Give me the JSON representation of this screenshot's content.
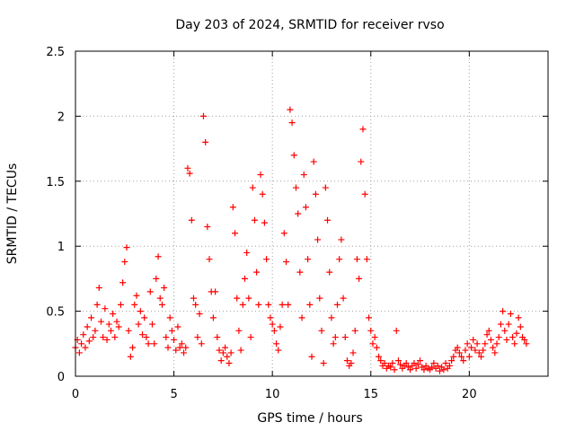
{
  "chart_data": {
    "type": "scatter",
    "title": "Day 203 of 2024, SRMTID for receiver rvso",
    "xlabel": "GPS time / hours",
    "ylabel": "SRMTID / TECUs",
    "xlim": [
      0,
      24
    ],
    "ylim": [
      0,
      2.5
    ],
    "grid": true,
    "marker": "+",
    "color": "#ff0000",
    "xticks": [
      {
        "value": 0,
        "label": "0"
      },
      {
        "value": 5,
        "label": "5"
      },
      {
        "value": 10,
        "label": "10"
      },
      {
        "value": 15,
        "label": "15"
      },
      {
        "value": 20,
        "label": "20"
      }
    ],
    "yticks": [
      {
        "value": 0,
        "label": "0"
      },
      {
        "value": 0.5,
        "label": "0.5"
      },
      {
        "value": 1,
        "label": "1"
      },
      {
        "value": 1.5,
        "label": "1.5"
      },
      {
        "value": 2,
        "label": "2"
      },
      {
        "value": 2.5,
        "label": "2.5"
      }
    ],
    "series": [
      {
        "name": "SRMTID",
        "points": [
          [
            0.0,
            0.22
          ],
          [
            0.1,
            0.28
          ],
          [
            0.2,
            0.18
          ],
          [
            0.3,
            0.25
          ],
          [
            0.4,
            0.32
          ],
          [
            0.5,
            0.22
          ],
          [
            0.6,
            0.38
          ],
          [
            0.7,
            0.27
          ],
          [
            0.8,
            0.45
          ],
          [
            0.9,
            0.3
          ],
          [
            1.0,
            0.35
          ],
          [
            1.1,
            0.55
          ],
          [
            1.2,
            0.68
          ],
          [
            1.3,
            0.42
          ],
          [
            1.4,
            0.3
          ],
          [
            1.5,
            0.52
          ],
          [
            1.6,
            0.28
          ],
          [
            1.7,
            0.4
          ],
          [
            1.8,
            0.35
          ],
          [
            1.9,
            0.48
          ],
          [
            2.0,
            0.3
          ],
          [
            2.1,
            0.42
          ],
          [
            2.2,
            0.38
          ],
          [
            2.3,
            0.55
          ],
          [
            2.4,
            0.72
          ],
          [
            2.5,
            0.88
          ],
          [
            2.6,
            0.99
          ],
          [
            2.7,
            0.35
          ],
          [
            2.8,
            0.15
          ],
          [
            2.9,
            0.22
          ],
          [
            3.0,
            0.55
          ],
          [
            3.1,
            0.62
          ],
          [
            3.2,
            0.4
          ],
          [
            3.3,
            0.5
          ],
          [
            3.4,
            0.32
          ],
          [
            3.5,
            0.45
          ],
          [
            3.6,
            0.3
          ],
          [
            3.7,
            0.25
          ],
          [
            3.8,
            0.65
          ],
          [
            3.9,
            0.4
          ],
          [
            4.0,
            0.25
          ],
          [
            4.1,
            0.75
          ],
          [
            4.2,
            0.92
          ],
          [
            4.3,
            0.6
          ],
          [
            4.4,
            0.55
          ],
          [
            4.5,
            0.68
          ],
          [
            4.6,
            0.3
          ],
          [
            4.7,
            0.22
          ],
          [
            4.8,
            0.45
          ],
          [
            4.9,
            0.35
          ],
          [
            5.0,
            0.28
          ],
          [
            5.1,
            0.2
          ],
          [
            5.2,
            0.38
          ],
          [
            5.3,
            0.22
          ],
          [
            5.4,
            0.25
          ],
          [
            5.5,
            0.18
          ],
          [
            5.6,
            0.22
          ],
          [
            5.7,
            1.6
          ],
          [
            5.8,
            1.56
          ],
          [
            5.9,
            1.2
          ],
          [
            6.0,
            0.6
          ],
          [
            6.1,
            0.55
          ],
          [
            6.2,
            0.3
          ],
          [
            6.3,
            0.48
          ],
          [
            6.4,
            0.25
          ],
          [
            6.5,
            2.0
          ],
          [
            6.6,
            1.8
          ],
          [
            6.7,
            1.15
          ],
          [
            6.8,
            0.9
          ],
          [
            6.9,
            0.65
          ],
          [
            7.0,
            0.45
          ],
          [
            7.1,
            0.65
          ],
          [
            7.2,
            0.3
          ],
          [
            7.3,
            0.2
          ],
          [
            7.4,
            0.12
          ],
          [
            7.5,
            0.18
          ],
          [
            7.6,
            0.22
          ],
          [
            7.7,
            0.15
          ],
          [
            7.8,
            0.1
          ],
          [
            7.9,
            0.18
          ],
          [
            8.0,
            1.3
          ],
          [
            8.1,
            1.1
          ],
          [
            8.2,
            0.6
          ],
          [
            8.3,
            0.35
          ],
          [
            8.4,
            0.2
          ],
          [
            8.5,
            0.55
          ],
          [
            8.6,
            0.75
          ],
          [
            8.7,
            0.95
          ],
          [
            8.8,
            0.6
          ],
          [
            8.9,
            0.3
          ],
          [
            9.0,
            1.45
          ],
          [
            9.1,
            1.2
          ],
          [
            9.2,
            0.8
          ],
          [
            9.3,
            0.55
          ],
          [
            9.4,
            1.55
          ],
          [
            9.5,
            1.4
          ],
          [
            9.6,
            1.18
          ],
          [
            9.7,
            0.9
          ],
          [
            9.8,
            0.55
          ],
          [
            9.9,
            0.45
          ],
          [
            10.0,
            0.4
          ],
          [
            10.1,
            0.35
          ],
          [
            10.2,
            0.25
          ],
          [
            10.3,
            0.2
          ],
          [
            10.4,
            0.38
          ],
          [
            10.5,
            0.55
          ],
          [
            10.6,
            1.1
          ],
          [
            10.7,
            0.88
          ],
          [
            10.8,
            0.55
          ],
          [
            10.9,
            2.05
          ],
          [
            11.0,
            1.95
          ],
          [
            11.1,
            1.7
          ],
          [
            11.2,
            1.45
          ],
          [
            11.3,
            1.25
          ],
          [
            11.4,
            0.8
          ],
          [
            11.5,
            0.45
          ],
          [
            11.6,
            1.55
          ],
          [
            11.7,
            1.3
          ],
          [
            11.8,
            0.9
          ],
          [
            11.9,
            0.55
          ],
          [
            12.0,
            0.15
          ],
          [
            12.1,
            1.65
          ],
          [
            12.2,
            1.4
          ],
          [
            12.3,
            1.05
          ],
          [
            12.4,
            0.6
          ],
          [
            12.5,
            0.35
          ],
          [
            12.6,
            0.1
          ],
          [
            12.7,
            1.45
          ],
          [
            12.8,
            1.2
          ],
          [
            12.9,
            0.8
          ],
          [
            13.0,
            0.45
          ],
          [
            13.1,
            0.25
          ],
          [
            13.2,
            0.3
          ],
          [
            13.3,
            0.55
          ],
          [
            13.4,
            0.9
          ],
          [
            13.5,
            1.05
          ],
          [
            13.6,
            0.6
          ],
          [
            13.7,
            0.3
          ],
          [
            13.8,
            0.12
          ],
          [
            13.9,
            0.08
          ],
          [
            14.0,
            0.1
          ],
          [
            14.1,
            0.18
          ],
          [
            14.2,
            0.35
          ],
          [
            14.3,
            0.9
          ],
          [
            14.4,
            0.75
          ],
          [
            14.5,
            1.65
          ],
          [
            14.6,
            1.9
          ],
          [
            14.7,
            1.4
          ],
          [
            14.8,
            0.9
          ],
          [
            14.9,
            0.45
          ],
          [
            15.0,
            0.35
          ],
          [
            15.1,
            0.25
          ],
          [
            15.2,
            0.3
          ],
          [
            15.3,
            0.22
          ],
          [
            15.4,
            0.15
          ],
          [
            15.5,
            0.12
          ],
          [
            15.6,
            0.08
          ],
          [
            15.7,
            0.1
          ],
          [
            15.8,
            0.06
          ],
          [
            15.9,
            0.08
          ],
          [
            16.0,
            0.07
          ],
          [
            16.1,
            0.1
          ],
          [
            16.2,
            0.05
          ],
          [
            16.3,
            0.35
          ],
          [
            16.4,
            0.12
          ],
          [
            16.5,
            0.09
          ],
          [
            16.6,
            0.06
          ],
          [
            16.7,
            0.08
          ],
          [
            16.8,
            0.1
          ],
          [
            16.9,
            0.07
          ],
          [
            17.0,
            0.05
          ],
          [
            17.1,
            0.08
          ],
          [
            17.2,
            0.1
          ],
          [
            17.3,
            0.06
          ],
          [
            17.4,
            0.09
          ],
          [
            17.5,
            0.12
          ],
          [
            17.6,
            0.07
          ],
          [
            17.7,
            0.05
          ],
          [
            17.8,
            0.08
          ],
          [
            17.9,
            0.06
          ],
          [
            18.0,
            0.05
          ],
          [
            18.1,
            0.07
          ],
          [
            18.2,
            0.1
          ],
          [
            18.3,
            0.06
          ],
          [
            18.4,
            0.08
          ],
          [
            18.5,
            0.04
          ],
          [
            18.6,
            0.07
          ],
          [
            18.7,
            0.05
          ],
          [
            18.8,
            0.1
          ],
          [
            18.9,
            0.06
          ],
          [
            19.0,
            0.08
          ],
          [
            19.1,
            0.12
          ],
          [
            19.2,
            0.15
          ],
          [
            19.3,
            0.2
          ],
          [
            19.4,
            0.22
          ],
          [
            19.5,
            0.18
          ],
          [
            19.6,
            0.15
          ],
          [
            19.7,
            0.12
          ],
          [
            19.8,
            0.2
          ],
          [
            19.9,
            0.25
          ],
          [
            20.0,
            0.15
          ],
          [
            20.1,
            0.22
          ],
          [
            20.2,
            0.28
          ],
          [
            20.3,
            0.2
          ],
          [
            20.4,
            0.25
          ],
          [
            20.5,
            0.18
          ],
          [
            20.6,
            0.15
          ],
          [
            20.7,
            0.2
          ],
          [
            20.8,
            0.25
          ],
          [
            20.9,
            0.32
          ],
          [
            21.0,
            0.35
          ],
          [
            21.1,
            0.28
          ],
          [
            21.2,
            0.22
          ],
          [
            21.3,
            0.18
          ],
          [
            21.4,
            0.25
          ],
          [
            21.5,
            0.3
          ],
          [
            21.6,
            0.4
          ],
          [
            21.7,
            0.5
          ],
          [
            21.8,
            0.35
          ],
          [
            21.9,
            0.28
          ],
          [
            22.0,
            0.4
          ],
          [
            22.1,
            0.48
          ],
          [
            22.2,
            0.3
          ],
          [
            22.3,
            0.25
          ],
          [
            22.4,
            0.33
          ],
          [
            22.5,
            0.45
          ],
          [
            22.6,
            0.38
          ],
          [
            22.7,
            0.3
          ],
          [
            22.8,
            0.28
          ],
          [
            22.9,
            0.25
          ]
        ]
      }
    ]
  }
}
